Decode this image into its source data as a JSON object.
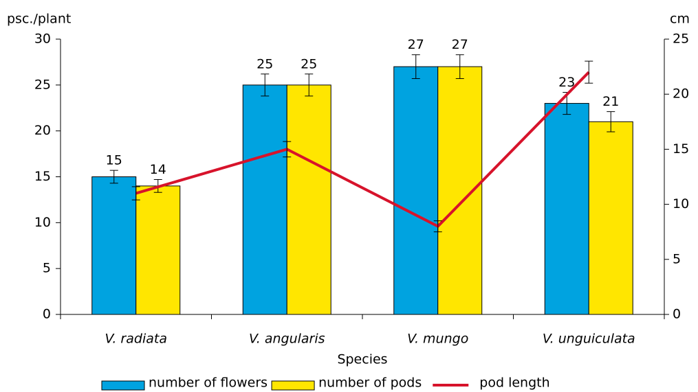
{
  "chart_data": {
    "type": "bar",
    "categories": [
      "V. radiata",
      "V. angularis",
      "V. mungo",
      "V. unguiculata"
    ],
    "xlabel": "Species",
    "ylabel": "psc./plant",
    "y2label": "cm",
    "ylim": [
      0,
      30
    ],
    "yticks": [
      0,
      5,
      10,
      15,
      20,
      25,
      30
    ],
    "y2lim": [
      0,
      25
    ],
    "y2ticks": [
      0,
      5,
      10,
      15,
      20,
      25
    ],
    "series": [
      {
        "name": "number of flowers",
        "type": "bar",
        "color": "#00a3e0",
        "values": [
          15,
          25,
          27,
          23
        ],
        "errors": [
          0.7,
          1.2,
          1.3,
          1.2
        ]
      },
      {
        "name": "number of pods",
        "type": "bar",
        "color": "#ffe600",
        "values": [
          14,
          25,
          27,
          21
        ],
        "errors": [
          0.7,
          1.2,
          1.3,
          1.1
        ]
      },
      {
        "name": "pod length",
        "type": "line",
        "axis": "y2",
        "color": "#d7132b",
        "values": [
          11,
          15,
          8,
          22
        ],
        "errors": [
          0.6,
          0.7,
          0.5,
          1.0
        ]
      }
    ],
    "legend": "bottom"
  }
}
